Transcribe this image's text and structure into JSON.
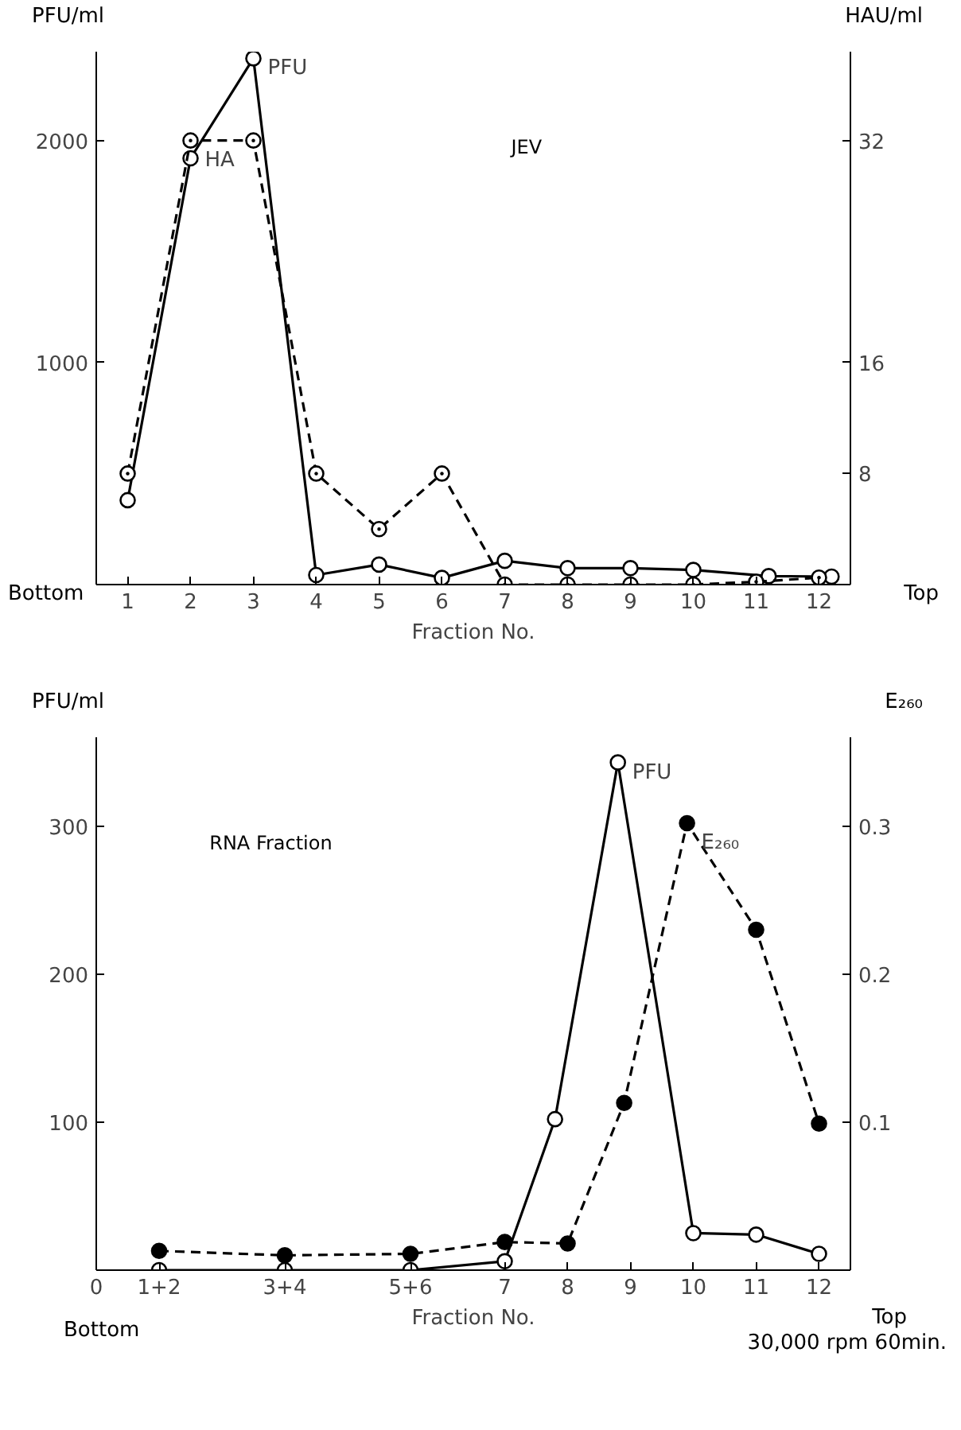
{
  "chart_data": [
    {
      "type": "line",
      "xlabel": "Fraction No.",
      "ylabel": "PFU/ml",
      "y2label": "HAU/ml",
      "annotations": [
        "JEV",
        "Bottom",
        "Top"
      ],
      "x": [
        1,
        2,
        3,
        4,
        5,
        6,
        7,
        8,
        9,
        10,
        11,
        12
      ],
      "xlim": [
        0.5,
        12.5
      ],
      "xticks": [
        1,
        2,
        3,
        4,
        5,
        6,
        7,
        8,
        9,
        10,
        11,
        12
      ],
      "ylim": [
        0,
        2400
      ],
      "yticks": [
        1000,
        2000
      ],
      "y2lim": [
        0,
        38.4
      ],
      "y2ticks": [
        8,
        16,
        32
      ],
      "grid": false,
      "legend": false,
      "series": [
        {
          "name": "PFU",
          "color": "#000000",
          "marker": "circle",
          "line_style": "solid",
          "x": [
            1,
            2,
            3,
            4,
            5,
            6,
            7,
            8,
            9,
            10,
            11.2,
            12.2
          ],
          "values": [
            380,
            1920,
            2370,
            43,
            90,
            30,
            107,
            74,
            74,
            66,
            38,
            36
          ]
        },
        {
          "name": "HA",
          "color": "#000000",
          "marker": "circle_dot",
          "line_style": "dashed",
          "axis": "y2",
          "values": [
            8,
            32,
            32,
            8,
            4,
            8,
            0,
            0,
            0,
            0,
            0.2,
            0.5
          ]
        }
      ]
    },
    {
      "type": "line",
      "xlabel": "Fraction No.",
      "ylabel": "PFU/ml",
      "y2label": "E₂₆₀",
      "annotations": [
        "RNA Fraction",
        "Bottom",
        "Top",
        "30,000 rpm 60min."
      ],
      "xlim": [
        0.5,
        12.5
      ],
      "xticks": [
        {
          "value": 0.5,
          "label": "0"
        },
        {
          "value": 1.5,
          "label": "1+2"
        },
        {
          "value": 3.5,
          "label": "3+4"
        },
        {
          "value": 5.5,
          "label": "5+6"
        },
        7,
        8,
        9,
        10,
        11,
        12
      ],
      "ylim": [
        0,
        360
      ],
      "yticks": [
        100,
        200,
        300
      ],
      "y2lim": [
        0,
        0.36
      ],
      "y2ticks": [
        0.1,
        0.2,
        0.3
      ],
      "grid": false,
      "legend": false,
      "series": [
        {
          "name": "PFU",
          "color": "#000000",
          "marker": "circle",
          "line_style": "solid",
          "x": [
            1.5,
            3.5,
            5.5,
            7,
            7.8,
            8.8,
            10,
            11,
            12
          ],
          "values": [
            0,
            0,
            0,
            6,
            102,
            343,
            25,
            24,
            11
          ]
        },
        {
          "name": "E₂₆₀",
          "color": "#000000",
          "marker": "circle_filled",
          "line_style": "dashed",
          "axis": "y2",
          "x": [
            1.5,
            3.5,
            5.5,
            7,
            8,
            8.9,
            9.9,
            11,
            12
          ],
          "values": [
            0.013,
            0.01,
            0.011,
            0.019,
            0.018,
            0.113,
            0.302,
            0.23,
            0.099
          ]
        }
      ]
    }
  ]
}
